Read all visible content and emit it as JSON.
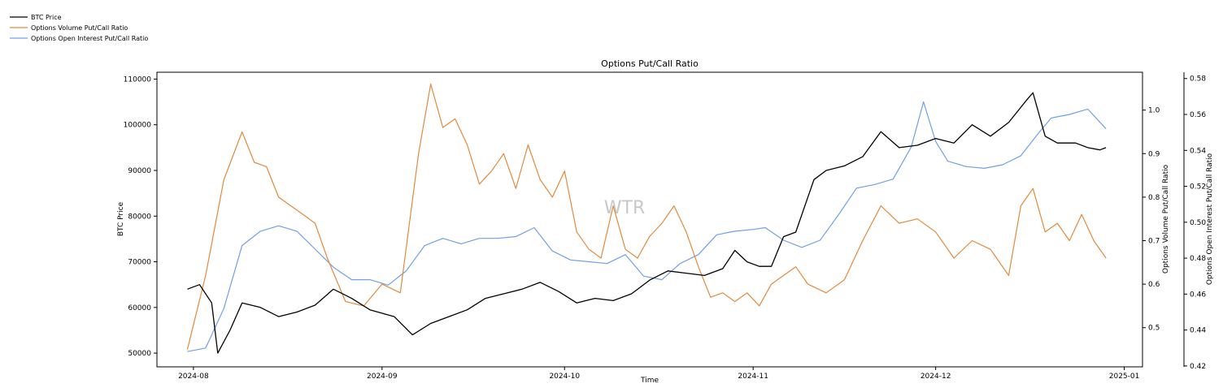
{
  "chart_data": {
    "type": "line",
    "title": "Options Put/Call Ratio",
    "watermark": "WTR",
    "xlabel": "Time",
    "x_ticks": [
      "2024-08",
      "2024-09",
      "2024-10",
      "2024-11",
      "2024-12",
      "2025-01"
    ],
    "x_range": [
      "2024-07-26",
      "2025-01-04"
    ],
    "grid": false,
    "legend_position": "top-left (outside plot)",
    "axes": {
      "left": {
        "label": "BTC Price",
        "range": [
          47000,
          111500
        ],
        "ticks": [
          "50000",
          "60000",
          "70000",
          "80000",
          "90000",
          "100000",
          "110000"
        ]
      },
      "right1": {
        "label": "Options Volume Put/Call Ratio",
        "range": [
          0.41,
          1.087
        ],
        "ticks": [
          "0.5",
          "0.6",
          "0.7",
          "0.8",
          "0.9",
          "1.0"
        ]
      },
      "right2": {
        "label": "Options Open Interest Put/Call Ratio",
        "range": [
          0.4195,
          0.5835
        ],
        "ticks": [
          "0.42",
          "0.44",
          "0.46",
          "0.48",
          "0.50",
          "0.52",
          "0.54",
          "0.56",
          "0.58"
        ]
      }
    },
    "series": [
      {
        "name": "BTC Price",
        "color": "#000000",
        "axis": "left",
        "x": [
          "2024-07-31",
          "2024-08-02",
          "2024-08-04",
          "2024-08-05",
          "2024-08-07",
          "2024-08-09",
          "2024-08-12",
          "2024-08-15",
          "2024-08-18",
          "2024-08-21",
          "2024-08-24",
          "2024-08-27",
          "2024-08-30",
          "2024-09-03",
          "2024-09-06",
          "2024-09-09",
          "2024-09-12",
          "2024-09-15",
          "2024-09-18",
          "2024-09-21",
          "2024-09-24",
          "2024-09-27",
          "2024-09-30",
          "2024-10-03",
          "2024-10-06",
          "2024-10-09",
          "2024-10-12",
          "2024-10-15",
          "2024-10-18",
          "2024-10-21",
          "2024-10-24",
          "2024-10-27",
          "2024-10-29",
          "2024-10-31",
          "2024-11-02",
          "2024-11-04",
          "2024-11-06",
          "2024-11-08",
          "2024-11-11",
          "2024-11-13",
          "2024-11-16",
          "2024-11-19",
          "2024-11-22",
          "2024-11-25",
          "2024-11-28",
          "2024-12-01",
          "2024-12-04",
          "2024-12-07",
          "2024-12-10",
          "2024-12-13",
          "2024-12-16",
          "2024-12-17",
          "2024-12-19",
          "2024-12-21",
          "2024-12-24",
          "2024-12-26",
          "2024-12-28",
          "2024-12-29"
        ],
        "values": [
          64000,
          65000,
          61000,
          50000,
          55000,
          61000,
          60000,
          58000,
          59000,
          60500,
          64000,
          62000,
          59500,
          58000,
          54000,
          56500,
          58000,
          59500,
          62000,
          63000,
          64000,
          65500,
          63500,
          61000,
          62000,
          61500,
          63000,
          66000,
          68000,
          67500,
          67000,
          68500,
          72500,
          70000,
          69000,
          69000,
          75500,
          76500,
          88000,
          90000,
          91000,
          93000,
          98500,
          95000,
          95500,
          97000,
          96000,
          100000,
          97500,
          100500,
          105500,
          107000,
          97500,
          96000,
          96000,
          95000,
          94500,
          95000
        ]
      },
      {
        "name": "Options Volume Put/Call Ratio",
        "color": "#e08a3c",
        "axis": "right1",
        "x": [
          "2024-07-31",
          "2024-08-03",
          "2024-08-06",
          "2024-08-09",
          "2024-08-11",
          "2024-08-13",
          "2024-08-15",
          "2024-08-17",
          "2024-08-19",
          "2024-08-21",
          "2024-08-23",
          "2024-08-26",
          "2024-08-29",
          "2024-09-01",
          "2024-09-04",
          "2024-09-07",
          "2024-09-09",
          "2024-09-11",
          "2024-09-13",
          "2024-09-15",
          "2024-09-17",
          "2024-09-19",
          "2024-09-21",
          "2024-09-23",
          "2024-09-25",
          "2024-09-27",
          "2024-09-29",
          "2024-10-01",
          "2024-10-03",
          "2024-10-05",
          "2024-10-07",
          "2024-10-09",
          "2024-10-11",
          "2024-10-13",
          "2024-10-15",
          "2024-10-17",
          "2024-10-19",
          "2024-10-21",
          "2024-10-23",
          "2024-10-25",
          "2024-10-27",
          "2024-10-29",
          "2024-10-31",
          "2024-11-02",
          "2024-11-04",
          "2024-11-06",
          "2024-11-08",
          "2024-11-10",
          "2024-11-13",
          "2024-11-16",
          "2024-11-19",
          "2024-11-22",
          "2024-11-25",
          "2024-11-28",
          "2024-12-01",
          "2024-12-04",
          "2024-12-07",
          "2024-12-10",
          "2024-12-13",
          "2024-12-15",
          "2024-12-17",
          "2024-12-19",
          "2024-12-21",
          "2024-12-23",
          "2024-12-25",
          "2024-12-27",
          "2024-12-29"
        ],
        "values": [
          0.45,
          0.62,
          0.84,
          0.95,
          0.88,
          0.87,
          0.8,
          0.78,
          0.76,
          0.74,
          0.66,
          0.56,
          0.55,
          0.6,
          0.58,
          0.9,
          1.06,
          0.96,
          0.98,
          0.92,
          0.83,
          0.86,
          0.9,
          0.82,
          0.92,
          0.84,
          0.8,
          0.86,
          0.72,
          0.68,
          0.66,
          0.78,
          0.68,
          0.66,
          0.71,
          0.74,
          0.78,
          0.72,
          0.64,
          0.57,
          0.58,
          0.56,
          0.58,
          0.55,
          0.6,
          0.62,
          0.64,
          0.6,
          0.58,
          0.61,
          0.7,
          0.78,
          0.74,
          0.75,
          0.72,
          0.66,
          0.7,
          0.68,
          0.62,
          0.78,
          0.82,
          0.72,
          0.74,
          0.7,
          0.76,
          0.7,
          0.66
        ]
      },
      {
        "name": "Options Open Interest Put/Call Ratio",
        "color": "#6fa0e8",
        "axis": "right2",
        "x": [
          "2024-07-31",
          "2024-08-03",
          "2024-08-06",
          "2024-08-09",
          "2024-08-12",
          "2024-08-15",
          "2024-08-18",
          "2024-08-21",
          "2024-08-24",
          "2024-08-27",
          "2024-08-30",
          "2024-09-02",
          "2024-09-05",
          "2024-09-08",
          "2024-09-11",
          "2024-09-14",
          "2024-09-17",
          "2024-09-20",
          "2024-09-23",
          "2024-09-26",
          "2024-09-29",
          "2024-10-02",
          "2024-10-05",
          "2024-10-08",
          "2024-10-11",
          "2024-10-14",
          "2024-10-17",
          "2024-10-20",
          "2024-10-23",
          "2024-10-26",
          "2024-10-29",
          "2024-11-01",
          "2024-11-03",
          "2024-11-06",
          "2024-11-09",
          "2024-11-12",
          "2024-11-15",
          "2024-11-18",
          "2024-11-21",
          "2024-11-24",
          "2024-11-27",
          "2024-11-29",
          "2024-12-01",
          "2024-12-03",
          "2024-12-06",
          "2024-12-09",
          "2024-12-12",
          "2024-12-15",
          "2024-12-18",
          "2024-12-20",
          "2024-12-23",
          "2024-12-26",
          "2024-12-29"
        ],
        "values": [
          0.428,
          0.43,
          0.452,
          0.487,
          0.495,
          0.498,
          0.495,
          0.485,
          0.475,
          0.468,
          0.468,
          0.465,
          0.473,
          0.487,
          0.491,
          0.488,
          0.491,
          0.491,
          0.492,
          0.497,
          0.484,
          0.479,
          0.478,
          0.477,
          0.482,
          0.47,
          0.468,
          0.477,
          0.482,
          0.493,
          0.495,
          0.496,
          0.497,
          0.49,
          0.486,
          0.49,
          0.504,
          0.519,
          0.521,
          0.524,
          0.542,
          0.567,
          0.545,
          0.534,
          0.531,
          0.53,
          0.532,
          0.537,
          0.55,
          0.558,
          0.56,
          0.563,
          0.552
        ]
      }
    ]
  }
}
